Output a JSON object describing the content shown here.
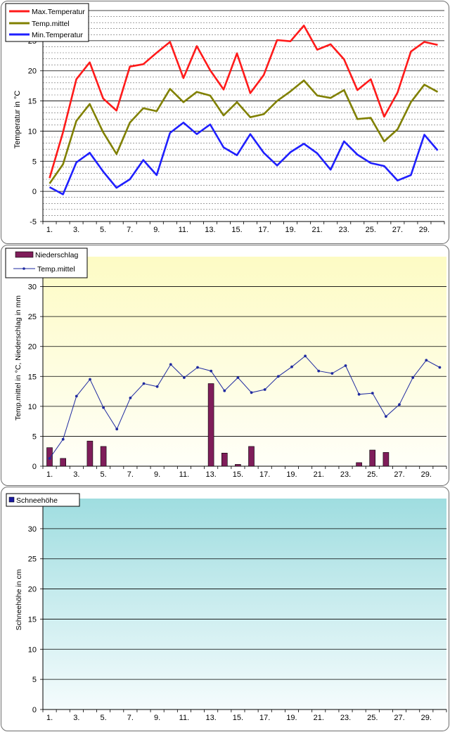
{
  "charts": {
    "temperature": {
      "type": "line",
      "ylabel": "Temperatur in °C",
      "ylim": [
        -5,
        30
      ],
      "yticks": [
        "-5",
        "0",
        "5",
        "10",
        "15",
        "20",
        "25",
        "30"
      ],
      "xtick_labels": [
        "1.",
        "3.",
        "5.",
        "7.",
        "9.",
        "11.",
        "13.",
        "15.",
        "17.",
        "19.",
        "21.",
        "23.",
        "25.",
        "27.",
        "29."
      ],
      "days": [
        1,
        2,
        3,
        4,
        5,
        6,
        7,
        8,
        9,
        10,
        11,
        12,
        13,
        14,
        15,
        16,
        17,
        18,
        19,
        20,
        21,
        22,
        23,
        24,
        25,
        26,
        27,
        28,
        29,
        30
      ],
      "legend": [
        "Max.Temperatur",
        "Temp.mittel",
        "Min.Temperatur"
      ],
      "colors": {
        "max": "#ff1a1a",
        "mean": "#808000",
        "min": "#1f1fff"
      },
      "series": [
        {
          "name": "Max.Temperatur",
          "values": [
            2.2,
            9.8,
            18.6,
            21.4,
            15.4,
            13.4,
            20.7,
            21.1,
            23.0,
            24.8,
            18.8,
            24.1,
            20.1,
            16.9,
            22.9,
            16.3,
            19.3,
            25.1,
            24.9,
            27.5,
            23.5,
            24.4,
            21.9,
            16.8,
            18.6,
            12.4,
            16.4,
            23.2,
            24.8,
            24.3
          ]
        },
        {
          "name": "Temp.mittel",
          "values": [
            1.3,
            4.5,
            11.7,
            14.5,
            9.8,
            6.2,
            11.4,
            13.8,
            13.3,
            17.0,
            14.8,
            16.5,
            15.9,
            12.6,
            14.8,
            12.3,
            12.8,
            15.0,
            16.6,
            18.4,
            15.9,
            15.5,
            16.8,
            12.0,
            12.2,
            8.3,
            10.3,
            14.8,
            17.7,
            16.5
          ]
        },
        {
          "name": "Min.Temperatur",
          "values": [
            0.7,
            -0.5,
            4.8,
            6.4,
            3.3,
            0.6,
            2.0,
            5.2,
            2.7,
            9.7,
            11.4,
            9.5,
            11.1,
            7.3,
            6.0,
            9.5,
            6.4,
            4.3,
            6.5,
            7.9,
            6.3,
            3.6,
            8.3,
            6.1,
            4.7,
            4.2,
            1.8,
            2.7,
            9.4,
            6.8
          ]
        }
      ]
    },
    "precip": {
      "type": "bar",
      "ylabel": "Temp.mittel  in °C, Niederschlag in mm",
      "ylim": [
        0,
        35
      ],
      "yticks": [
        "0",
        "5",
        "10",
        "15",
        "20",
        "25",
        "30"
      ],
      "xtick_labels": [
        "1.",
        "3.",
        "5.",
        "7.",
        "9.",
        "11.",
        "13.",
        "15.",
        "17.",
        "19.",
        "21.",
        "23.",
        "25.",
        "27.",
        "29."
      ],
      "legend": [
        "Niederschlag",
        "Temp.mittel"
      ],
      "colors": {
        "bar": "#7f1d5a",
        "line": "#1f2aa0",
        "bg_top": "#fdfbc4",
        "bg_bottom": "#fffffa"
      },
      "series": [
        {
          "name": "Niederschlag",
          "values": [
            3.1,
            1.3,
            0,
            4.2,
            3.3,
            0,
            0,
            0,
            0,
            0,
            0,
            0,
            13.8,
            2.2,
            0.3,
            3.3,
            0,
            0,
            0,
            0,
            0,
            0,
            0,
            0.6,
            2.7,
            2.3,
            0,
            0,
            0,
            0
          ]
        },
        {
          "name": "Temp.mittel",
          "values": [
            1.3,
            4.5,
            11.7,
            14.5,
            9.8,
            6.2,
            11.4,
            13.8,
            13.3,
            17.0,
            14.8,
            16.5,
            15.9,
            12.6,
            14.8,
            12.3,
            12.8,
            15.0,
            16.6,
            18.4,
            15.9,
            15.5,
            16.8,
            12.0,
            12.2,
            8.3,
            10.3,
            14.8,
            17.7,
            16.5
          ]
        }
      ]
    },
    "snow": {
      "type": "bar",
      "ylabel": "Schneehöhe in cm",
      "ylim": [
        0,
        35
      ],
      "yticks": [
        "0",
        "5",
        "10",
        "15",
        "20",
        "25",
        "30"
      ],
      "xtick_labels": [
        "1.",
        "3.",
        "5.",
        "7.",
        "9.",
        "11.",
        "13.",
        "15.",
        "17.",
        "19.",
        "21.",
        "23.",
        "25.",
        "27.",
        "29."
      ],
      "legend": [
        "Schneehöhe"
      ],
      "colors": {
        "bar": "#1a1aa0",
        "bg_top": "#9fdde0",
        "bg_bottom": "#f5fcfd"
      },
      "series": [
        {
          "name": "Schneehöhe",
          "values": [
            0,
            0,
            0,
            0,
            0,
            0,
            0,
            0,
            0,
            0,
            0,
            0,
            0,
            0,
            0,
            0,
            0,
            0,
            0,
            0,
            0,
            0,
            0,
            0,
            0,
            0,
            0,
            0,
            0,
            0
          ]
        }
      ]
    }
  }
}
